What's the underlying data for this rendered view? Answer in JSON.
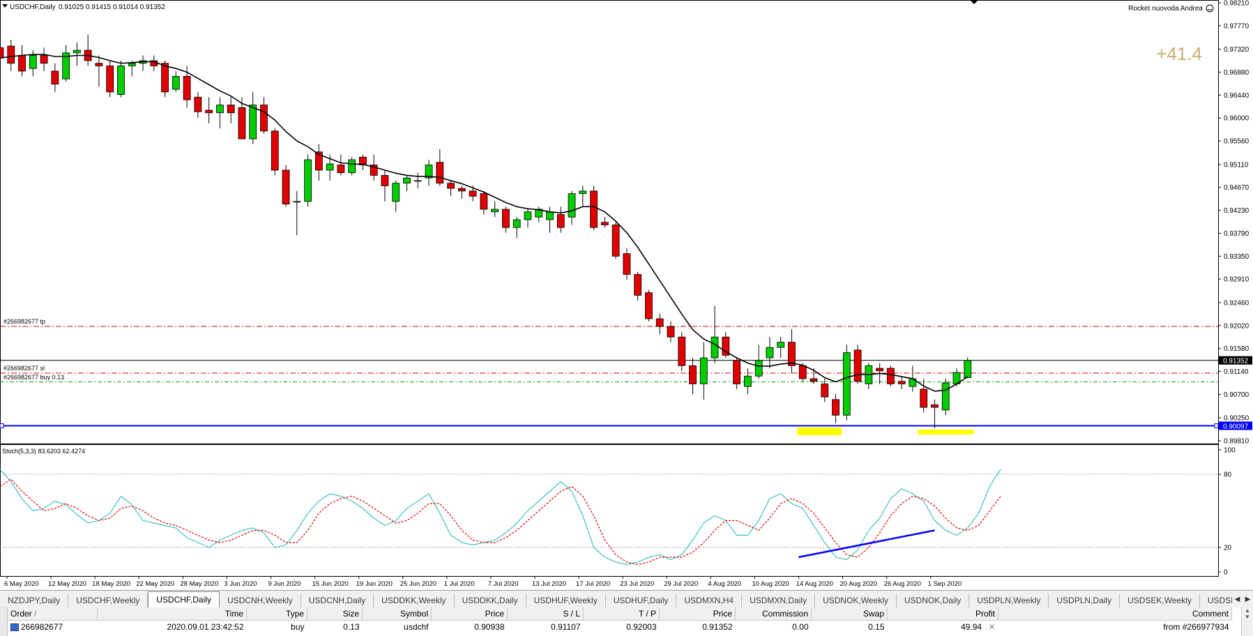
{
  "chart": {
    "header": {
      "symbol": "USDCHF,Daily",
      "ohlc": "0.91025 0.91415 0.91014 0.91352"
    },
    "expert": {
      "name": "Rocket nuovoda Andrea",
      "icon": "smiley-icon"
    },
    "profit_overlay": "+41.4",
    "price_axis": {
      "labels": [
        "0.98210",
        "0.97770",
        "0.97320",
        "0.96880",
        "0.96440",
        "0.96000",
        "0.95560",
        "0.95110",
        "0.94670",
        "0.94230",
        "0.93790",
        "0.93350",
        "0.92910",
        "0.92460",
        "0.92020",
        "0.91580",
        "0.91140",
        "0.90700",
        "0.90250",
        "0.89810"
      ],
      "current_price_tag": "0.91352",
      "support_price_tag": "0.90097"
    },
    "trade_lines": {
      "tp_label": "#266982677 tp",
      "sl_label": "#266982677 sl",
      "buy_label": "#266982677 buy 0.13",
      "tp_price": 0.92003,
      "sl_price": 0.91107,
      "open_price": 0.90938,
      "current_price": 0.91352,
      "support_price": 0.90097
    },
    "stochastic": {
      "label": "Stoch(5,3,3) 83.6203 62.4274",
      "levels": [
        "100",
        "80",
        "20",
        "0"
      ]
    },
    "date_axis": [
      "6 May 2020",
      "12 May 2020",
      "18 May 2020",
      "22 May 2020",
      "28 May 2020",
      "3 Jun 2020",
      "9 Jun 2020",
      "15 Jun 2020",
      "19 Jun 2020",
      "25 Jun 2020",
      "1 Jul 2020",
      "7 Jul 2020",
      "13 Jul 2020",
      "17 Jul 2020",
      "23 Jul 2020",
      "29 Jul 2020",
      "4 Aug 2020",
      "10 Aug 2020",
      "14 Aug 2020",
      "20 Aug 2020",
      "26 Aug 2020",
      "1 Sep 2020"
    ],
    "colors": {
      "bull": "#00cc00",
      "bear": "#e00000",
      "ma": "#000000",
      "stoch_main": "#40c0c0",
      "stoch_signal": "#e00000",
      "tp": "#e00000",
      "open": "#00a000",
      "support": "#0000ff",
      "highlight": "#ffff00",
      "profit": "#c8b070"
    }
  },
  "tabs": [
    "NZDJPY,Daily",
    "USDCHF,Weekly",
    "USDCHF,Daily",
    "USDCNH,Weekly",
    "USDCNH,Daily",
    "USDDKK,Weekly",
    "USDDKK,Daily",
    "USDHUF,Weekly",
    "USDHUF,Daily",
    "USDMXN,H4",
    "USDMXN,Daily",
    "USDNOK,Weekly",
    "USDNOK,Daily",
    "USDPLN,Weekly",
    "USDPLN,Daily",
    "USDSEK,Weekly",
    "USDSEK,Daily",
    "USDS("
  ],
  "active_tab_index": 2,
  "trades": {
    "headers": {
      "order": "Order",
      "sort_mark": "/",
      "time": "Time",
      "type": "Type",
      "size": "Size",
      "symbol": "Symbol",
      "price": "Price",
      "sl": "S / L",
      "tp": "T / P",
      "cur_price": "Price",
      "commission": "Commission",
      "swap": "Swap",
      "profit": "Profit",
      "comment": "Comment"
    },
    "rows": [
      {
        "order": "266982677",
        "time": "2020.09.01 23:42:52",
        "type": "buy",
        "size": "0.13",
        "symbol": "usdchf",
        "price": "0.90938",
        "sl": "0.91107",
        "tp": "0.92003",
        "cur_price": "0.91352",
        "commission": "0.00",
        "swap": "0.15",
        "profit": "49.94",
        "comment": "from #266977934"
      }
    ]
  },
  "candles": [
    [
      0.9735,
      0.9755,
      0.97,
      0.9715
    ],
    [
      0.9738,
      0.975,
      0.969,
      0.9705
    ],
    [
      0.972,
      0.974,
      0.968,
      0.969
    ],
    [
      0.9695,
      0.973,
      0.968,
      0.972
    ],
    [
      0.972,
      0.9735,
      0.969,
      0.9705
    ],
    [
      0.969,
      0.9705,
      0.965,
      0.9665
    ],
    [
      0.9675,
      0.974,
      0.967,
      0.9725
    ],
    [
      0.9725,
      0.9745,
      0.97,
      0.973
    ],
    [
      0.973,
      0.976,
      0.97,
      0.971
    ],
    [
      0.9705,
      0.972,
      0.966,
      0.97
    ],
    [
      0.97,
      0.971,
      0.964,
      0.965
    ],
    [
      0.9645,
      0.971,
      0.964,
      0.97
    ],
    [
      0.97,
      0.971,
      0.968,
      0.9705
    ],
    [
      0.9705,
      0.972,
      0.969,
      0.971
    ],
    [
      0.971,
      0.972,
      0.969,
      0.97
    ],
    [
      0.9705,
      0.971,
      0.964,
      0.965
    ],
    [
      0.9655,
      0.969,
      0.965,
      0.968
    ],
    [
      0.968,
      0.97,
      0.962,
      0.9635
    ],
    [
      0.964,
      0.965,
      0.96,
      0.9612
    ],
    [
      0.9615,
      0.964,
      0.959,
      0.961
    ],
    [
      0.961,
      0.964,
      0.958,
      0.9625
    ],
    [
      0.9625,
      0.964,
      0.959,
      0.961
    ],
    [
      0.962,
      0.964,
      0.956,
      0.956
    ],
    [
      0.956,
      0.965,
      0.955,
      0.9625
    ],
    [
      0.9625,
      0.964,
      0.957,
      0.9575
    ],
    [
      0.9575,
      0.958,
      0.949,
      0.95
    ],
    [
      0.95,
      0.951,
      0.943,
      0.9435
    ],
    [
      0.944,
      0.946,
      0.9375,
      0.944
    ],
    [
      0.944,
      0.953,
      0.943,
      0.952
    ],
    [
      0.9535,
      0.955,
      0.948,
      0.95
    ],
    [
      0.95,
      0.953,
      0.948,
      0.9512
    ],
    [
      0.951,
      0.953,
      0.949,
      0.9495
    ],
    [
      0.9495,
      0.9525,
      0.949,
      0.952
    ],
    [
      0.9525,
      0.953,
      0.95,
      0.951
    ],
    [
      0.951,
      0.953,
      0.948,
      0.949
    ],
    [
      0.949,
      0.95,
      0.944,
      0.947
    ],
    [
      0.944,
      0.948,
      0.942,
      0.9475
    ],
    [
      0.9475,
      0.949,
      0.946,
      0.9485
    ],
    [
      0.948,
      0.9495,
      0.9465,
      0.948
    ],
    [
      0.9485,
      0.952,
      0.947,
      0.951
    ],
    [
      0.9515,
      0.954,
      0.947,
      0.9475
    ],
    [
      0.9475,
      0.948,
      0.945,
      0.9465
    ],
    [
      0.9465,
      0.947,
      0.9445,
      0.946
    ],
    [
      0.946,
      0.947,
      0.944,
      0.945
    ],
    [
      0.9455,
      0.946,
      0.9415,
      0.9425
    ],
    [
      0.942,
      0.944,
      0.941,
      0.9425
    ],
    [
      0.9425,
      0.943,
      0.938,
      0.939
    ],
    [
      0.939,
      0.941,
      0.937,
      0.9405
    ],
    [
      0.9405,
      0.9425,
      0.939,
      0.942
    ],
    [
      0.941,
      0.943,
      0.94,
      0.9425
    ],
    [
      0.9405,
      0.943,
      0.938,
      0.942
    ],
    [
      0.9415,
      0.943,
      0.938,
      0.939
    ],
    [
      0.941,
      0.946,
      0.9395,
      0.9455
    ],
    [
      0.9455,
      0.947,
      0.943,
      0.946
    ],
    [
      0.946,
      0.947,
      0.9385,
      0.939
    ],
    [
      0.94,
      0.941,
      0.939,
      0.9395
    ],
    [
      0.9395,
      0.94,
      0.933,
      0.9335
    ],
    [
      0.934,
      0.935,
      0.929,
      0.93
    ],
    [
      0.93,
      0.9305,
      0.925,
      0.926
    ],
    [
      0.9265,
      0.927,
      0.921,
      0.9215
    ],
    [
      0.9215,
      0.9225,
      0.9185,
      0.92
    ],
    [
      0.92,
      0.921,
      0.917,
      0.918
    ],
    [
      0.918,
      0.919,
      0.9115,
      0.9125
    ],
    [
      0.9125,
      0.914,
      0.907,
      0.909
    ],
    [
      0.909,
      0.917,
      0.906,
      0.914
    ],
    [
      0.914,
      0.924,
      0.913,
      0.918
    ],
    [
      0.918,
      0.919,
      0.914,
      0.9145
    ],
    [
      0.9135,
      0.914,
      0.908,
      0.909
    ],
    [
      0.9085,
      0.912,
      0.907,
      0.9105
    ],
    [
      0.9105,
      0.9165,
      0.91,
      0.9135
    ],
    [
      0.914,
      0.918,
      0.912,
      0.916
    ],
    [
      0.916,
      0.918,
      0.914,
      0.917
    ],
    [
      0.917,
      0.9195,
      0.911,
      0.9125
    ],
    [
      0.9125,
      0.913,
      0.9095,
      0.91
    ],
    [
      0.91,
      0.912,
      0.909,
      0.9095
    ],
    [
      0.909,
      0.91,
      0.9055,
      0.9065
    ],
    [
      0.906,
      0.907,
      0.9015,
      0.903
    ],
    [
      0.903,
      0.9165,
      0.902,
      0.915
    ],
    [
      0.9155,
      0.9165,
      0.909,
      0.9095
    ],
    [
      0.909,
      0.913,
      0.908,
      0.9125
    ],
    [
      0.912,
      0.913,
      0.909,
      0.9115
    ],
    [
      0.912,
      0.9125,
      0.9085,
      0.909
    ],
    [
      0.9095,
      0.9105,
      0.908,
      0.909
    ],
    [
      0.9085,
      0.9125,
      0.9075,
      0.91
    ],
    [
      0.908,
      0.91,
      0.9035,
      0.9045
    ],
    [
      0.905,
      0.906,
      0.9005,
      0.9045
    ],
    [
      0.904,
      0.91,
      0.903,
      0.9092
    ],
    [
      0.909,
      0.912,
      0.9085,
      0.9112
    ],
    [
      0.9102,
      0.9141,
      0.9101,
      0.9135
    ]
  ],
  "ma_values": [
    0.9715,
    0.9718,
    0.972,
    0.9722,
    0.9722,
    0.9718,
    0.9718,
    0.972,
    0.972,
    0.9716,
    0.971,
    0.9705,
    0.9706,
    0.9708,
    0.9708,
    0.97,
    0.9695,
    0.9688,
    0.9676,
    0.9664,
    0.9652,
    0.9642,
    0.9628,
    0.962,
    0.9612,
    0.9596,
    0.9574,
    0.9556,
    0.9545,
    0.953,
    0.9522,
    0.9514,
    0.9512,
    0.9511,
    0.9506,
    0.95,
    0.9494,
    0.949,
    0.9488,
    0.9488,
    0.9486,
    0.948,
    0.9474,
    0.9466,
    0.9458,
    0.9448,
    0.9438,
    0.943,
    0.9426,
    0.9424,
    0.942,
    0.9418,
    0.9422,
    0.943,
    0.943,
    0.942,
    0.9402,
    0.938,
    0.9352,
    0.932,
    0.9288,
    0.9256,
    0.9224,
    0.9194,
    0.9176,
    0.9166,
    0.9152,
    0.914,
    0.913,
    0.9124,
    0.9124,
    0.9128,
    0.913,
    0.9126,
    0.9116,
    0.9102,
    0.9094,
    0.9102,
    0.9108,
    0.9108,
    0.911,
    0.9108,
    0.9104,
    0.91,
    0.9086,
    0.9076,
    0.9078,
    0.909,
    0.9104
  ],
  "stoch_main": [
    84,
    74,
    60,
    50,
    52,
    58,
    55,
    47,
    40,
    42,
    48,
    62,
    55,
    42,
    40,
    38,
    36,
    28,
    24,
    20,
    26,
    30,
    34,
    36,
    32,
    20,
    22,
    34,
    48,
    58,
    64,
    62,
    58,
    52,
    44,
    38,
    42,
    52,
    58,
    64,
    48,
    30,
    24,
    22,
    24,
    26,
    32,
    40,
    50,
    58,
    66,
    74,
    66,
    46,
    20,
    12,
    8,
    6,
    8,
    12,
    14,
    10,
    14,
    26,
    40,
    46,
    42,
    30,
    30,
    42,
    60,
    64,
    56,
    52,
    38,
    24,
    12,
    10,
    18,
    34,
    44,
    60,
    68,
    64,
    58,
    42,
    34,
    30,
    36,
    48,
    70,
    84
  ],
  "stoch_signal": [
    70,
    76,
    66,
    58,
    50,
    52,
    56,
    52,
    46,
    42,
    44,
    52,
    54,
    50,
    44,
    40,
    38,
    34,
    30,
    26,
    24,
    26,
    30,
    34,
    34,
    30,
    24,
    24,
    34,
    48,
    56,
    60,
    62,
    58,
    52,
    46,
    40,
    42,
    48,
    56,
    56,
    46,
    34,
    26,
    24,
    24,
    28,
    34,
    42,
    50,
    58,
    66,
    70,
    62,
    46,
    26,
    14,
    8,
    6,
    8,
    12,
    12,
    12,
    16,
    24,
    34,
    42,
    42,
    38,
    34,
    44,
    56,
    60,
    56,
    48,
    36,
    24,
    14,
    12,
    20,
    32,
    46,
    56,
    62,
    60,
    54,
    44,
    36,
    34,
    38,
    50,
    62
  ]
}
